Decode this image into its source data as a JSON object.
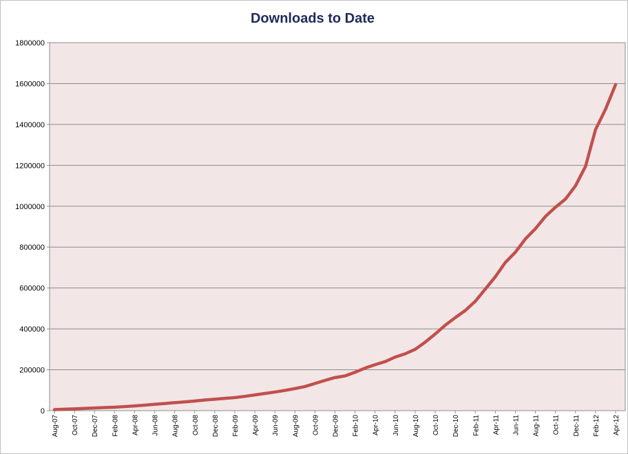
{
  "chart_data": {
    "type": "line",
    "title": "Downloads to Date",
    "xlabel": "",
    "ylabel": "",
    "ylim": [
      0,
      1800000
    ],
    "yticks": [
      "0",
      "200000",
      "400000",
      "600000",
      "800000",
      "1000000",
      "1200000",
      "1400000",
      "1600000",
      "1800000"
    ],
    "grid": true,
    "legend": "none",
    "colors": {
      "line": "#c0504d",
      "plot_bg": "#f2e6e6",
      "grid": "#8c8c8c",
      "title": "#1f2a5a"
    },
    "x_tick_labels": [
      "Aug-07",
      "Oct-07",
      "Dec-07",
      "Feb-08",
      "Apr-08",
      "Jun-08",
      "Aug-08",
      "Oct-08",
      "Dec-08",
      "Feb-09",
      "Apr-09",
      "Jun-09",
      "Aug-09",
      "Oct-09",
      "Dec-09",
      "Feb-10",
      "Apr-10",
      "Jun-10",
      "Aug-10",
      "Oct-10",
      "Dec-10",
      "Feb-11",
      "Apr-11",
      "Jun-11",
      "Aug-11",
      "Oct-11",
      "Dec-11",
      "Feb-12",
      "Apr-12"
    ],
    "x": [
      "Aug-07",
      "Sep-07",
      "Oct-07",
      "Nov-07",
      "Dec-07",
      "Jan-08",
      "Feb-08",
      "Mar-08",
      "Apr-08",
      "May-08",
      "Jun-08",
      "Jul-08",
      "Aug-08",
      "Sep-08",
      "Oct-08",
      "Nov-08",
      "Dec-08",
      "Jan-09",
      "Feb-09",
      "Mar-09",
      "Apr-09",
      "May-09",
      "Jun-09",
      "Jul-09",
      "Aug-09",
      "Sep-09",
      "Oct-09",
      "Nov-09",
      "Dec-09",
      "Jan-10",
      "Feb-10",
      "Mar-10",
      "Apr-10",
      "May-10",
      "Jun-10",
      "Jul-10",
      "Aug-10",
      "Sep-10",
      "Oct-10",
      "Nov-10",
      "Dec-10",
      "Jan-11",
      "Feb-11",
      "Mar-11",
      "Apr-11",
      "May-11",
      "Jun-11",
      "Jul-11",
      "Aug-11",
      "Sep-11",
      "Oct-11",
      "Nov-11",
      "Dec-11",
      "Jan-12",
      "Feb-12",
      "Mar-12",
      "Apr-12"
    ],
    "series": [
      {
        "values": [
          5000,
          7000,
          9000,
          11000,
          13000,
          15000,
          17000,
          20000,
          23000,
          27000,
          31000,
          35000,
          39000,
          43000,
          47000,
          52000,
          56000,
          60000,
          64000,
          70000,
          77000,
          84000,
          91000,
          99000,
          108000,
          118000,
          133000,
          148000,
          162000,
          170000,
          188000,
          208000,
          225000,
          240000,
          262000,
          278000,
          300000,
          335000,
          375000,
          418000,
          455000,
          490000,
          535000,
          595000,
          655000,
          725000,
          775000,
          840000,
          890000,
          950000,
          995000,
          1035000,
          1100000,
          1195000,
          1375000,
          1475000,
          1595000
        ]
      }
    ]
  }
}
